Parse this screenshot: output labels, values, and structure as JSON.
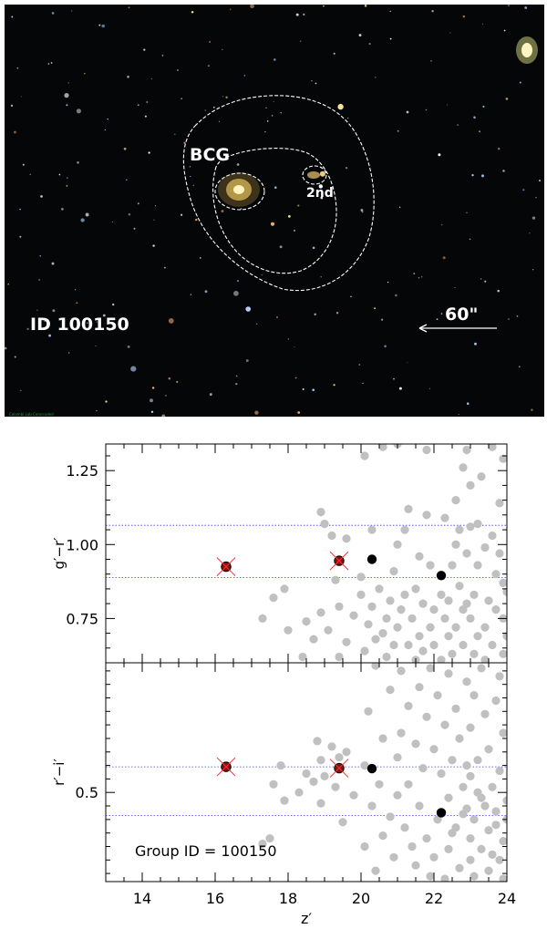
{
  "image": {
    "labels": {
      "bcg": "BCG",
      "second": "2nd",
      "group_id": "ID 100150",
      "scale_bar": "60\"",
      "credit": "Colombi Lab Colorcoded"
    }
  },
  "chart_data": [
    {
      "type": "scatter",
      "panel": "top",
      "ylabel": "g′−r′",
      "xlim": [
        13,
        24
      ],
      "ylim": [
        0.6,
        1.34
      ],
      "yticks": [
        0.75,
        1.0,
        1.25
      ],
      "ytick_labels": [
        "0.75",
        "1.00",
        "1.25"
      ],
      "hlines": [
        1.065,
        0.888
      ],
      "series": [
        {
          "role": "field galaxies",
          "color": "#c0c0c0",
          "points": [
            [
              20.1,
              1.3
            ],
            [
              20.6,
              1.33
            ],
            [
              21.0,
              1.34
            ],
            [
              21.8,
              1.32
            ],
            [
              22.9,
              1.32
            ],
            [
              23.6,
              1.33
            ],
            [
              23.9,
              1.29
            ],
            [
              22.8,
              1.26
            ],
            [
              23.3,
              1.23
            ],
            [
              23.0,
              1.2
            ],
            [
              22.6,
              1.15
            ],
            [
              23.8,
              1.14
            ],
            [
              21.3,
              1.12
            ],
            [
              22.3,
              1.09
            ],
            [
              23.2,
              1.07
            ],
            [
              23.0,
              1.06
            ],
            [
              22.7,
              1.05
            ],
            [
              21.8,
              1.1
            ],
            [
              23.6,
              1.03
            ],
            [
              21.2,
              1.05
            ],
            [
              20.3,
              1.05
            ],
            [
              18.9,
              1.11
            ],
            [
              19.0,
              1.07
            ],
            [
              19.2,
              1.03
            ],
            [
              19.6,
              1.02
            ],
            [
              21.0,
              1.0
            ],
            [
              21.6,
              0.96
            ],
            [
              22.6,
              1.0
            ],
            [
              23.4,
              0.99
            ],
            [
              22.9,
              0.97
            ],
            [
              23.8,
              0.97
            ],
            [
              21.9,
              0.93
            ],
            [
              22.5,
              0.93
            ],
            [
              23.2,
              0.93
            ],
            [
              23.7,
              0.9
            ],
            [
              20.9,
              0.91
            ],
            [
              20.0,
              0.89
            ],
            [
              19.3,
              0.88
            ],
            [
              23.9,
              0.87
            ],
            [
              22.7,
              0.86
            ],
            [
              21.5,
              0.85
            ],
            [
              20.5,
              0.85
            ],
            [
              20.0,
              0.83
            ],
            [
              21.2,
              0.83
            ],
            [
              22.2,
              0.83
            ],
            [
              23.1,
              0.83
            ],
            [
              24.0,
              0.84
            ],
            [
              17.9,
              0.85
            ],
            [
              17.6,
              0.82
            ],
            [
              20.8,
              0.81
            ],
            [
              21.7,
              0.8
            ],
            [
              22.4,
              0.81
            ],
            [
              23.5,
              0.81
            ],
            [
              19.4,
              0.79
            ],
            [
              20.3,
              0.79
            ],
            [
              21.1,
              0.78
            ],
            [
              22.0,
              0.78
            ],
            [
              22.8,
              0.78
            ],
            [
              23.7,
              0.78
            ],
            [
              18.9,
              0.77
            ],
            [
              17.3,
              0.75
            ],
            [
              19.8,
              0.76
            ],
            [
              20.7,
              0.75
            ],
            [
              21.4,
              0.75
            ],
            [
              22.3,
              0.75
            ],
            [
              23.0,
              0.75
            ],
            [
              23.9,
              0.75
            ],
            [
              18.5,
              0.74
            ],
            [
              20.2,
              0.73
            ],
            [
              21.0,
              0.72
            ],
            [
              21.9,
              0.72
            ],
            [
              22.6,
              0.72
            ],
            [
              23.4,
              0.72
            ],
            [
              19.1,
              0.71
            ],
            [
              18.0,
              0.71
            ],
            [
              20.6,
              0.7
            ],
            [
              21.6,
              0.69
            ],
            [
              22.4,
              0.69
            ],
            [
              23.2,
              0.69
            ],
            [
              24.0,
              0.69
            ],
            [
              18.7,
              0.68
            ],
            [
              19.6,
              0.67
            ],
            [
              20.9,
              0.66
            ],
            [
              21.3,
              0.66
            ],
            [
              22.0,
              0.66
            ],
            [
              22.8,
              0.66
            ],
            [
              23.6,
              0.66
            ],
            [
              20.1,
              0.64
            ],
            [
              21.7,
              0.64
            ],
            [
              22.5,
              0.63
            ],
            [
              23.1,
              0.63
            ],
            [
              23.9,
              0.63
            ],
            [
              18.4,
              0.62
            ],
            [
              19.4,
              0.62
            ],
            [
              20.7,
              0.62
            ],
            [
              21.5,
              0.61
            ],
            [
              22.2,
              0.61
            ],
            [
              23.4,
              0.61
            ],
            [
              20.4,
              0.68
            ],
            [
              22.9,
              0.8
            ]
          ]
        },
        {
          "role": "members",
          "color": "#000000",
          "points": [
            [
              20.3,
              0.95
            ],
            [
              22.2,
              0.895
            ]
          ]
        },
        {
          "role": "BCG and 2nd",
          "color": "#8a1010",
          "points": [
            [
              16.3,
              0.925
            ],
            [
              19.4,
              0.945
            ]
          ]
        }
      ]
    },
    {
      "type": "scatter",
      "panel": "bottom",
      "xlabel": "z′",
      "ylabel": "r′−i′",
      "xlim": [
        13,
        24
      ],
      "ylim": [
        0.17,
        0.98
      ],
      "xticks": [
        14,
        16,
        18,
        20,
        22,
        24
      ],
      "xtick_labels": [
        "14",
        "16",
        "18",
        "20",
        "22",
        "24"
      ],
      "yticks": [
        0.5
      ],
      "ytick_labels": [
        "0.5"
      ],
      "hlines": [
        0.595,
        0.415
      ],
      "annotation": "Group ID = 100150",
      "series": [
        {
          "role": "field galaxies",
          "color": "#c0c0c0",
          "points": [
            [
              20.4,
              0.97
            ],
            [
              21.1,
              0.95
            ],
            [
              21.9,
              0.96
            ],
            [
              22.4,
              0.94
            ],
            [
              23.3,
              0.96
            ],
            [
              23.8,
              0.93
            ],
            [
              22.9,
              0.91
            ],
            [
              21.6,
              0.89
            ],
            [
              20.8,
              0.88
            ],
            [
              22.1,
              0.86
            ],
            [
              23.1,
              0.86
            ],
            [
              23.7,
              0.84
            ],
            [
              21.3,
              0.82
            ],
            [
              22.6,
              0.81
            ],
            [
              20.2,
              0.8
            ],
            [
              21.8,
              0.78
            ],
            [
              23.4,
              0.79
            ],
            [
              22.3,
              0.75
            ],
            [
              23.0,
              0.74
            ],
            [
              21.1,
              0.72
            ],
            [
              23.9,
              0.72
            ],
            [
              20.6,
              0.7
            ],
            [
              22.7,
              0.7
            ],
            [
              21.5,
              0.68
            ],
            [
              18.8,
              0.69
            ],
            [
              19.2,
              0.67
            ],
            [
              19.6,
              0.65
            ],
            [
              22.0,
              0.66
            ],
            [
              23.5,
              0.66
            ],
            [
              18.9,
              0.62
            ],
            [
              19.4,
              0.63
            ],
            [
              21.0,
              0.63
            ],
            [
              22.5,
              0.62
            ],
            [
              23.2,
              0.62
            ],
            [
              17.8,
              0.6
            ],
            [
              20.1,
              0.6
            ],
            [
              21.7,
              0.59
            ],
            [
              23.8,
              0.58
            ],
            [
              18.5,
              0.57
            ],
            [
              19.0,
              0.56
            ],
            [
              22.2,
              0.57
            ],
            [
              23.0,
              0.56
            ],
            [
              17.6,
              0.53
            ],
            [
              18.7,
              0.54
            ],
            [
              19.3,
              0.52
            ],
            [
              20.5,
              0.53
            ],
            [
              21.3,
              0.53
            ],
            [
              22.8,
              0.52
            ],
            [
              23.6,
              0.52
            ],
            [
              18.3,
              0.5
            ],
            [
              19.8,
              0.49
            ],
            [
              21.0,
              0.49
            ],
            [
              22.4,
              0.48
            ],
            [
              23.3,
              0.48
            ],
            [
              24.0,
              0.47
            ],
            [
              17.9,
              0.47
            ],
            [
              18.9,
              0.46
            ],
            [
              20.3,
              0.45
            ],
            [
              21.6,
              0.45
            ],
            [
              22.9,
              0.44
            ],
            [
              23.7,
              0.43
            ],
            [
              20.8,
              0.41
            ],
            [
              22.1,
              0.4
            ],
            [
              23.1,
              0.4
            ],
            [
              24.0,
              0.4
            ],
            [
              19.5,
              0.39
            ],
            [
              21.2,
              0.37
            ],
            [
              22.6,
              0.37
            ],
            [
              23.5,
              0.36
            ],
            [
              20.6,
              0.34
            ],
            [
              21.8,
              0.33
            ],
            [
              23.0,
              0.33
            ],
            [
              23.9,
              0.32
            ],
            [
              17.5,
              0.33
            ],
            [
              17.3,
              0.31
            ],
            [
              20.1,
              0.3
            ],
            [
              21.4,
              0.3
            ],
            [
              22.4,
              0.29
            ],
            [
              23.3,
              0.29
            ],
            [
              20.9,
              0.26
            ],
            [
              22.0,
              0.26
            ],
            [
              23.0,
              0.25
            ],
            [
              23.8,
              0.25
            ],
            [
              21.5,
              0.23
            ],
            [
              22.7,
              0.22
            ],
            [
              23.5,
              0.21
            ],
            [
              20.4,
              0.21
            ],
            [
              21.9,
              0.19
            ],
            [
              23.1,
              0.19
            ],
            [
              23.9,
              0.18
            ],
            [
              22.3,
              0.18
            ],
            [
              22.9,
              0.6
            ],
            [
              23.4,
              0.45
            ],
            [
              22.5,
              0.35
            ],
            [
              23.6,
              0.27
            ],
            [
              23.2,
              0.5
            ],
            [
              22.8,
              0.42
            ],
            [
              23.7,
              0.38
            ]
          ]
        },
        {
          "role": "members",
          "color": "#000000",
          "points": [
            [
              20.3,
              0.588
            ],
            [
              22.2,
              0.425
            ]
          ]
        },
        {
          "role": "BCG and 2nd",
          "color": "#8a1010",
          "points": [
            [
              16.3,
              0.595
            ],
            [
              19.4,
              0.59
            ]
          ]
        }
      ]
    }
  ]
}
